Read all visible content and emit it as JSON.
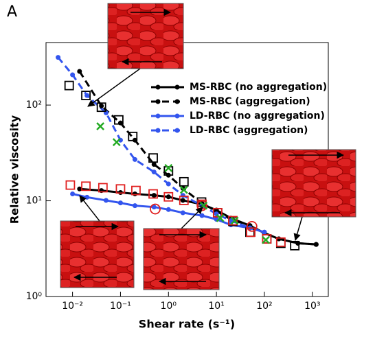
{
  "chart_data": {
    "type": "line",
    "panel_label": "A",
    "x_label": "Shear rate (s⁻¹)",
    "y_label": "Relative viscosity",
    "xlog": true,
    "ylog": true,
    "xlim": [
      0.0028,
      2150
    ],
    "ylim": [
      1,
      450
    ],
    "xticks": [
      {
        "value": 0.01,
        "label": "10⁻²"
      },
      {
        "value": 0.1,
        "label": "10⁻¹"
      },
      {
        "value": 1,
        "label": "10⁰"
      },
      {
        "value": 10,
        "label": "10¹"
      },
      {
        "value": 100,
        "label": "10²"
      },
      {
        "value": 1000,
        "label": "10³"
      }
    ],
    "yticks": [
      {
        "value": 1,
        "label": "10⁰"
      },
      {
        "value": 10,
        "label": "10¹"
      },
      {
        "value": 100,
        "label": "10²"
      }
    ],
    "series": [
      {
        "name": "MS-RBC (no aggregation)",
        "color": "#000000",
        "dash": false,
        "marker": "dot",
        "x": [
          0.014,
          0.04,
          0.1,
          0.2,
          0.5,
          1,
          2,
          5,
          10,
          20,
          50,
          100,
          200,
          500,
          1200
        ],
        "values": [
          13.3,
          12.8,
          12.2,
          11.8,
          11.4,
          11.0,
          10.1,
          9.2,
          8.0,
          6.6,
          5.5,
          4.6,
          4.0,
          3.6,
          3.5
        ]
      },
      {
        "name": "MS-RBC (aggregation)",
        "color": "#000000",
        "dash": true,
        "marker": "dot",
        "x": [
          0.014,
          0.04,
          0.1,
          0.2,
          0.5,
          1,
          2,
          5,
          10,
          20,
          50,
          100,
          200,
          500,
          1200
        ],
        "values": [
          225,
          98,
          65,
          43,
          24,
          18.5,
          13.5,
          9.4,
          7.8,
          6.4,
          5.5,
          4.6,
          4.0,
          3.6,
          3.5
        ]
      },
      {
        "name": "LD-RBC (no aggregation)",
        "color": "#3355ee",
        "dash": false,
        "marker": "dot",
        "x": [
          0.01,
          0.02,
          0.05,
          0.1,
          0.2,
          0.5,
          1,
          2,
          5,
          10,
          20,
          50,
          100
        ],
        "values": [
          11.8,
          10.9,
          10.1,
          9.5,
          8.9,
          8.6,
          8.1,
          7.5,
          7.0,
          6.4,
          5.6,
          5.2,
          4.7
        ]
      },
      {
        "name": "LD-RBC (aggregation)",
        "color": "#3355ee",
        "dash": true,
        "marker": "dot",
        "x": [
          0.005,
          0.01,
          0.02,
          0.05,
          0.1,
          0.2,
          0.5,
          1,
          2,
          5,
          10,
          20,
          50,
          100
        ],
        "values": [
          315,
          207,
          126,
          83,
          43,
          27,
          20,
          15,
          11.4,
          8.9,
          7.3,
          6.2,
          5.2,
          4.7
        ]
      },
      {
        "color": "#000000",
        "marker": "square",
        "x": [
          0.0085,
          0.019,
          0.04,
          0.092,
          0.18,
          0.48,
          1,
          2.1,
          4.9,
          10.6,
          22,
          50,
          112,
          220,
          430
        ],
        "values": [
          160,
          126,
          95,
          70,
          47,
          28,
          20.5,
          15.8,
          9.7,
          7.5,
          6.1,
          4.7,
          4.0,
          3.6,
          3.4
        ]
      },
      {
        "color": "#e02020",
        "marker": "square",
        "x": [
          0.009,
          0.019,
          0.043,
          0.1,
          0.21,
          0.48,
          1,
          2.1,
          5,
          10.6,
          22,
          52,
          112,
          220
        ],
        "values": [
          14.6,
          14.2,
          13.7,
          13.3,
          12.8,
          11.8,
          11,
          10.1,
          9.2,
          7.5,
          6.2,
          4.7,
          4.0,
          3.7
        ]
      },
      {
        "color": "#e02020",
        "marker": "ring",
        "x": [
          0.53,
          5,
          55
        ],
        "values": [
          8.2,
          8.9,
          5.4
        ]
      },
      {
        "color": "#22aa22",
        "marker": "cross",
        "x": [
          0.038,
          0.083,
          1,
          2.1,
          5.4,
          12,
          24,
          107
        ],
        "values": [
          60,
          41,
          22,
          13,
          8.9,
          6.6,
          6.2,
          3.9
        ]
      }
    ]
  }
}
